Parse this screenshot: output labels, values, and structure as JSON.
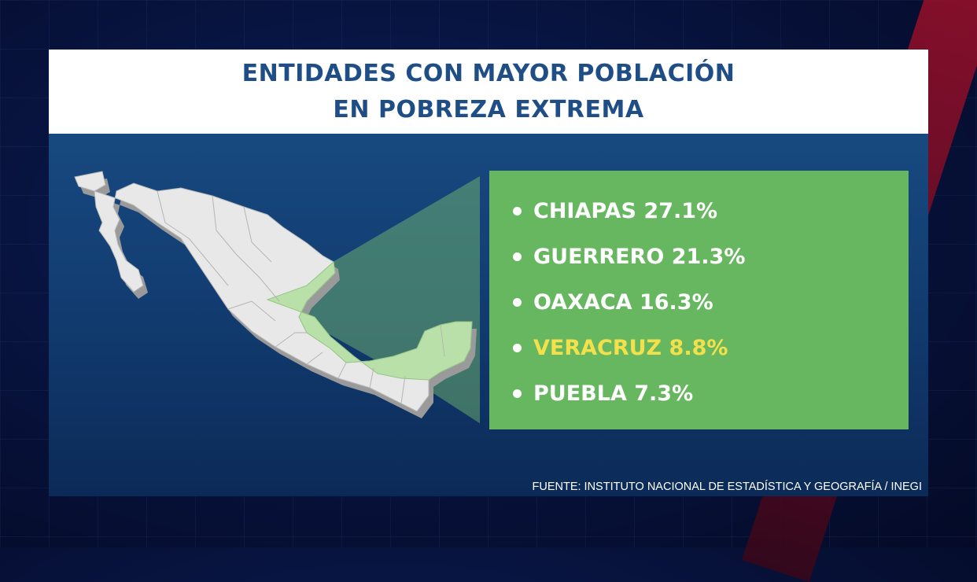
{
  "title": {
    "line1": "ENTIDADES CON MAYOR POBLACIÓN",
    "line2": "EN POBREZA EXTREMA"
  },
  "entities": [
    {
      "label": "CHIAPAS 27.1%",
      "highlight": false
    },
    {
      "label": "GUERRERO 21.3%",
      "highlight": false
    },
    {
      "label": "OAXACA 16.3%",
      "highlight": false
    },
    {
      "label": "VERACRUZ 8.8%",
      "highlight": true
    },
    {
      "label": "PUEBLA 7.3%",
      "highlight": false
    }
  ],
  "source": "FUENTE: INSTITUTO NACIONAL DE ESTADÍSTICA Y GEOGRAFÍA / INEGI",
  "colors": {
    "title": "#1f4e86",
    "box_green": "#66b760",
    "highlight": "#f4e04b",
    "map_land": "#e8e8e8",
    "map_highlight": "#b9e0a8"
  }
}
